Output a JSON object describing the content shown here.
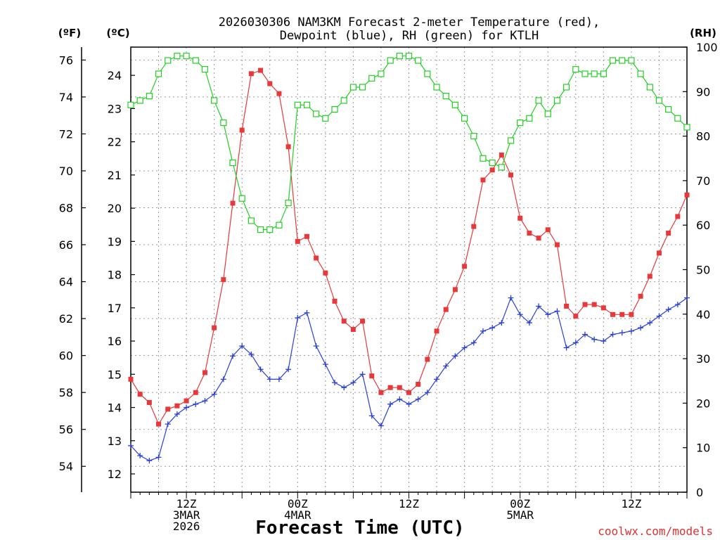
{
  "chart_data": {
    "type": "line",
    "title_line1": "2026030306 NAM3KM Forecast 2-meter Temperature (red),",
    "title_line2": "Dewpoint (blue), RH (green) for KTLH",
    "units": {
      "fahrenheit": "(ºF)",
      "celsius": "(ºC)",
      "rh": "(RH)"
    },
    "xlabel": "Forecast Time (UTC)",
    "credit": "coolwx.com/models",
    "x_ticks": [
      {
        "hour": 6,
        "lines": [
          "12Z",
          "3MAR",
          "2026"
        ]
      },
      {
        "hour": 18,
        "lines": [
          "00Z",
          "4MAR"
        ]
      },
      {
        "hour": 30,
        "lines": [
          "12Z"
        ]
      },
      {
        "hour": 42,
        "lines": [
          "00Z",
          "5MAR"
        ]
      },
      {
        "hour": 54,
        "lines": [
          "12Z"
        ]
      }
    ],
    "xlim": [
      0,
      60
    ],
    "f_ticks": [
      "54",
      "56",
      "58",
      "60",
      "62",
      "64",
      "66",
      "68",
      "70",
      "72",
      "74",
      "76"
    ],
    "c_ticks": [
      "12",
      "13",
      "14",
      "15",
      "16",
      "17",
      "18",
      "19",
      "20",
      "21",
      "22",
      "23",
      "24"
    ],
    "rh_ticks": [
      "0",
      "10",
      "20",
      "30",
      "40",
      "50",
      "60",
      "70",
      "80",
      "90",
      "100"
    ],
    "f_range": [
      52.6,
      76.7
    ],
    "c_range": [
      11.45,
      24.85
    ],
    "rh_range": [
      0,
      100
    ],
    "series": [
      {
        "name": "2-meter Temperature",
        "units": "C",
        "color": "#e8383a",
        "marker": "filled-square",
        "values": [
          14.85,
          14.4,
          14.15,
          13.5,
          13.95,
          14.05,
          14.2,
          14.45,
          15.05,
          16.4,
          17.85,
          20.15,
          22.35,
          24.05,
          24.15,
          23.75,
          23.45,
          21.85,
          19.0,
          19.15,
          18.5,
          18.05,
          17.2,
          16.6,
          16.35,
          16.6,
          14.95,
          14.45,
          14.6,
          14.6,
          14.45,
          14.7,
          15.45,
          16.3,
          16.95,
          17.55,
          18.25,
          19.45,
          20.85,
          21.15,
          21.6,
          21.0,
          19.7,
          19.25,
          19.1,
          19.35,
          18.9,
          17.05,
          16.75,
          17.1,
          17.1,
          17.0,
          16.8,
          16.8,
          16.8,
          17.35,
          17.95,
          18.65,
          19.25,
          19.75,
          20.4
        ]
      },
      {
        "name": "Dewpoint",
        "units": "C",
        "color": "#2a3fd8",
        "marker": "plus",
        "values": [
          12.85,
          12.55,
          12.4,
          12.5,
          13.5,
          13.8,
          14.0,
          14.1,
          14.2,
          14.4,
          14.85,
          15.55,
          15.85,
          15.6,
          15.15,
          14.85,
          14.85,
          15.15,
          16.7,
          16.85,
          15.85,
          15.3,
          14.75,
          14.6,
          14.75,
          15.0,
          13.75,
          13.45,
          14.1,
          14.25,
          14.1,
          14.25,
          14.45,
          14.85,
          15.25,
          15.55,
          15.8,
          15.95,
          16.3,
          16.4,
          16.55,
          17.3,
          16.8,
          16.55,
          17.05,
          16.8,
          16.9,
          15.8,
          15.95,
          16.2,
          16.05,
          16.0,
          16.2,
          16.25,
          16.3,
          16.4,
          16.55,
          16.75,
          16.95,
          17.1,
          17.3
        ]
      },
      {
        "name": "RH",
        "units": "%",
        "color": "#22d022",
        "marker": "open-square",
        "values": [
          87,
          88,
          89,
          94,
          97,
          98,
          98,
          97,
          95,
          88,
          83,
          74,
          66,
          61,
          59,
          59,
          60,
          65,
          87,
          87,
          85,
          84,
          86,
          88,
          91,
          91,
          93,
          94,
          97,
          98,
          98,
          97,
          94,
          91,
          89,
          87,
          84,
          80,
          75,
          74,
          73,
          79,
          83,
          84,
          88,
          85,
          88,
          91,
          95,
          94,
          94,
          94,
          97,
          97,
          97,
          94,
          91,
          88,
          86,
          84,
          82
        ]
      }
    ]
  }
}
